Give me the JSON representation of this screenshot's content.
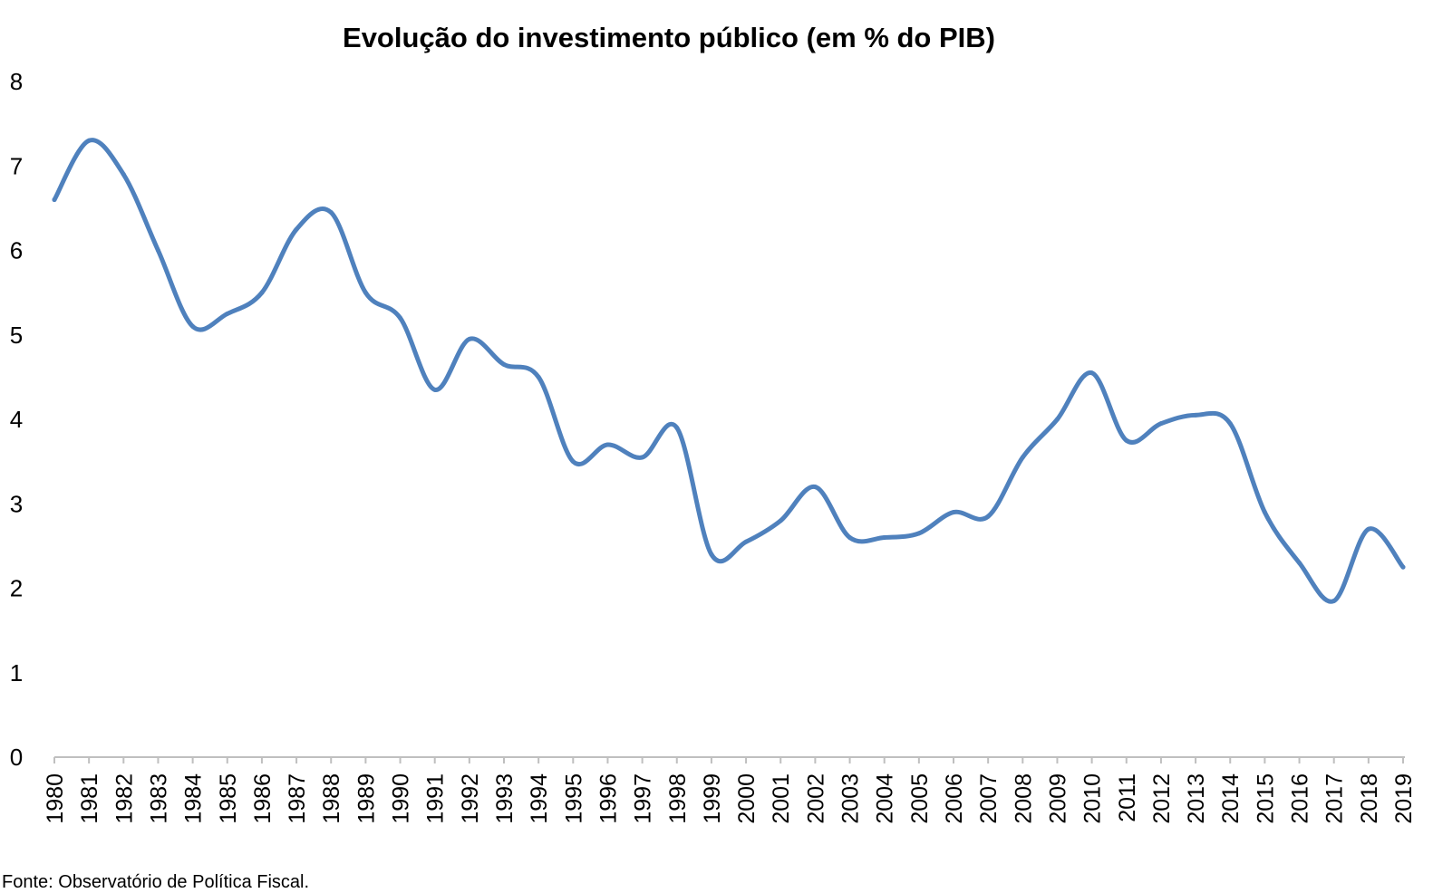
{
  "chart_data": {
    "type": "line",
    "title": "Evolução do investimento público (em % do PIB)",
    "xlabel": "",
    "ylabel": "",
    "ylim": [
      0,
      8
    ],
    "yticks": [
      "0",
      "1",
      "2",
      "3",
      "4",
      "5",
      "6",
      "7",
      "8"
    ],
    "grid": false,
    "categories": [
      "1980",
      "1981",
      "1982",
      "1983",
      "1984",
      "1985",
      "1986",
      "1987",
      "1988",
      "1989",
      "1990",
      "1991",
      "1992",
      "1993",
      "1994",
      "1995",
      "1996",
      "1997",
      "1998",
      "1999",
      "2000",
      "2001",
      "2002",
      "2003",
      "2004",
      "2005",
      "2006",
      "2007",
      "2008",
      "2009",
      "2010",
      "2011",
      "2012",
      "2013",
      "2014",
      "2015",
      "2016",
      "2017",
      "2018",
      "2019"
    ],
    "series": [
      {
        "values": [
          6.6,
          7.3,
          6.9,
          6.0,
          5.1,
          5.25,
          5.5,
          6.25,
          6.45,
          5.5,
          5.2,
          4.35,
          4.95,
          4.65,
          4.5,
          3.5,
          3.7,
          3.55,
          3.9,
          2.4,
          2.55,
          2.8,
          3.2,
          2.6,
          2.6,
          2.65,
          2.9,
          2.85,
          3.55,
          4.0,
          4.55,
          3.75,
          3.95,
          4.05,
          3.95,
          2.9,
          2.3,
          1.85,
          2.7,
          2.25
        ],
        "color": "#4f81bd"
      }
    ],
    "source": "Fonte: Observatório de Política Fiscal."
  }
}
